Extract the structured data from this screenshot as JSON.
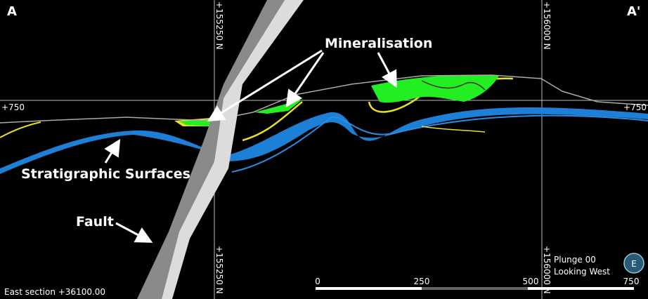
{
  "section": {
    "corner_left": "A",
    "corner_right": "A'",
    "grid_labels": {
      "top_left": "+155250 N",
      "top_right": "+156000 N",
      "bottom_left": "+155250 N",
      "bottom_right": "+156000 N",
      "left": "+750",
      "right": "+750"
    },
    "annotations": {
      "mineralisation": "Mineralisation",
      "stratigraphic": "Stratigraphic Surfaces",
      "fault": "Fault"
    },
    "footer": {
      "section_name": "East section +36100.00",
      "plunge": "Plunge 00",
      "looking": "Looking West",
      "compass": "E"
    },
    "scale_bar": [
      "0",
      "250",
      "500",
      "750"
    ]
  }
}
